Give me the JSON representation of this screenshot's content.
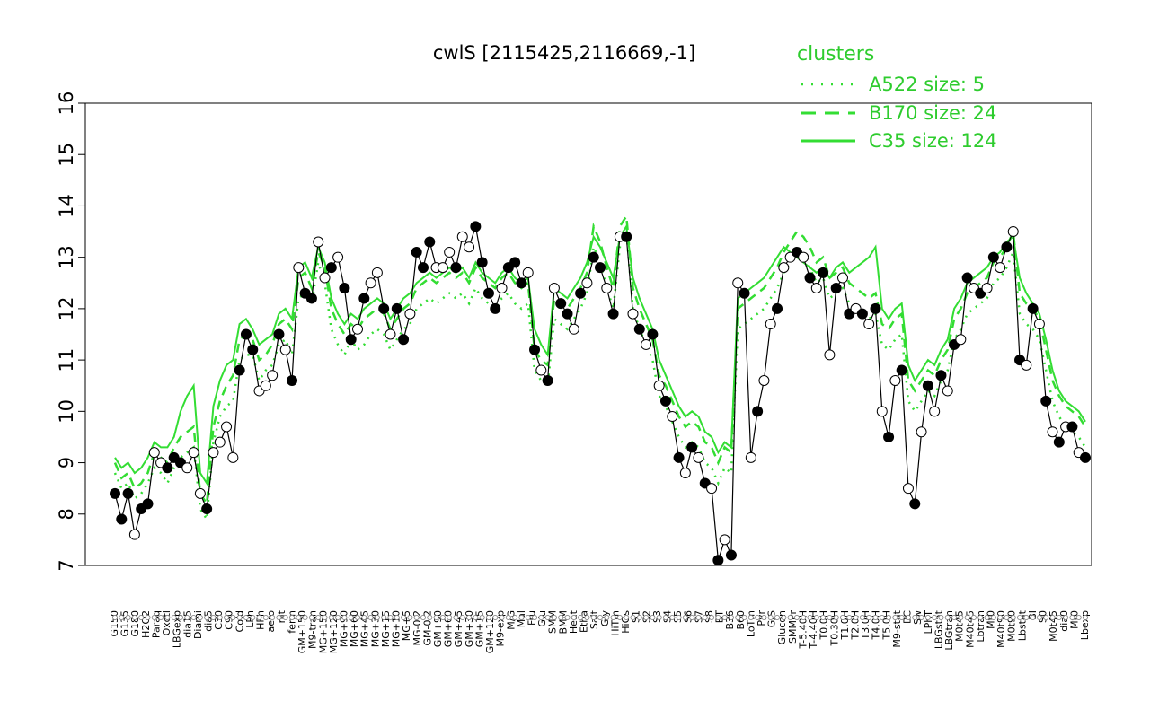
{
  "chart_data": {
    "type": "line",
    "title": "cwlS [2115425,2116669,-1]",
    "xlabel": "",
    "ylabel": "",
    "ylim": [
      7,
      16
    ],
    "yticks": [
      7,
      8,
      9,
      10,
      11,
      12,
      13,
      14,
      15,
      16
    ],
    "x_tick_labels": [
      "G150",
      "G135",
      "G180",
      "H2O2",
      "Paraq",
      "Oxctl",
      "LBGexp",
      "dia15",
      "Diami",
      "dia5",
      "C30",
      "C90",
      "Cold",
      "LPh",
      "HPh",
      "aero",
      "nit",
      "ferm",
      "GM+150",
      "M9-tran",
      "MG+150",
      "MG+120",
      "MG+90",
      "MG+60",
      "MG+45",
      "MG+30",
      "MG+15",
      "MG+10",
      "MG+5",
      "MG-0.2",
      "GM-0.2",
      "GM+90",
      "GM+60",
      "GM+45",
      "GM+30",
      "GM+15",
      "GM+120",
      "M9-exp",
      "M/G",
      "Mal",
      "Fru",
      "Glu",
      "SMM",
      "BMM",
      "Heat",
      "Etha",
      "Salt",
      "Gly",
      "HiTm",
      "HiOs",
      "S1",
      "S2",
      "S3",
      "S4",
      "S5",
      "S6",
      "S7",
      "S8",
      "BT",
      "B36",
      "B60",
      "LoTm",
      "Pyr",
      "G/S",
      "Glucon",
      "SMMPr",
      "T-5.40H",
      "T-4.40H",
      "T0.0H",
      "T0.30H",
      "T1.0H",
      "T2.0H",
      "T3.0H",
      "T4.0H",
      "T5.0H",
      "M9-stat",
      "BC",
      "Sw",
      "LPhT",
      "LBGstat",
      "LBGtran",
      "M0t45",
      "M40t45",
      "Lbtran",
      "Mt0",
      "M40t90",
      "M0t90",
      "Lbstat",
      "BI",
      "S0",
      "M0t45",
      "dia0",
      "Mt0",
      "Lbexp"
    ],
    "legend": {
      "title": "clusters",
      "position": "top-right",
      "entries": [
        {
          "label": "A522 size: 5",
          "style": "dotted"
        },
        {
          "label": "B170 size: 24",
          "style": "dashed"
        },
        {
          "label": "C35 size: 124",
          "style": "solid"
        }
      ]
    },
    "colors": {
      "cluster_lines": "#33dd33",
      "data_line": "#000000",
      "point_filled": "#000000",
      "point_open": "#ffffff"
    },
    "series": [
      {
        "name": "cwlS",
        "values": [
          8.4,
          7.9,
          8.4,
          7.6,
          8.1,
          8.2,
          9.2,
          9.0,
          8.9,
          9.1,
          9.0,
          8.9,
          9.2,
          8.4,
          8.1,
          9.2,
          9.4,
          9.7,
          9.1,
          10.8,
          11.5,
          11.2,
          10.4,
          10.5,
          10.7,
          11.5,
          11.2,
          10.6,
          12.8,
          12.3,
          12.2,
          13.3,
          12.6,
          12.8,
          13.0,
          12.4,
          11.4,
          11.6,
          12.2,
          12.5,
          12.7,
          12.0,
          11.5,
          12.0,
          11.4,
          11.9,
          13.1,
          12.8,
          13.3,
          12.8,
          12.8,
          13.1,
          12.8,
          13.4,
          13.2,
          13.6,
          12.9,
          12.3,
          12.0,
          12.4,
          12.8,
          12.9,
          12.5,
          12.7,
          11.2,
          10.8,
          10.6,
          12.4,
          12.1,
          11.9,
          11.6,
          12.3,
          12.5,
          13.0,
          12.8,
          12.4,
          11.9,
          13.4,
          13.4,
          11.9,
          11.6,
          11.3,
          11.5,
          10.5,
          10.2,
          9.9,
          9.1,
          8.8,
          9.3,
          9.1,
          8.6,
          8.5,
          7.1,
          7.5,
          7.2,
          12.5,
          12.3,
          9.1,
          10.0,
          10.6,
          11.7,
          12.0,
          12.8,
          13.0,
          13.1,
          13.0,
          12.6,
          12.4,
          12.7,
          11.1,
          12.4,
          12.6,
          11.9,
          12.0,
          11.9,
          11.7,
          12.0,
          10.0,
          9.5,
          10.6,
          10.8,
          8.5,
          8.2,
          9.6,
          10.5,
          10.0,
          10.7,
          10.4,
          11.3,
          11.4,
          12.6,
          12.4,
          12.3,
          12.4,
          13.0,
          12.8,
          13.2,
          13.5,
          11.0,
          10.9,
          12.0,
          11.7,
          10.2,
          9.6,
          9.4,
          9.7,
          9.7,
          9.2,
          9.1
        ],
        "filled_indices": [
          0,
          1,
          2,
          4,
          5,
          8,
          9,
          10,
          14,
          19,
          20,
          21,
          25,
          27,
          29,
          30,
          33,
          35,
          36,
          38,
          41,
          43,
          44,
          46,
          47,
          48,
          52,
          55,
          56,
          57,
          58,
          60,
          61,
          62,
          64,
          66,
          68,
          69,
          71,
          73,
          74,
          76,
          78,
          80,
          82,
          84,
          86,
          88,
          90,
          92,
          94,
          96,
          98,
          101,
          104,
          106,
          108,
          110,
          112,
          114,
          116,
          118,
          120,
          122,
          124,
          126,
          128,
          130,
          132,
          134,
          136,
          138,
          140,
          142,
          144,
          146,
          148
        ]
      },
      {
        "name": "A522 size: 5",
        "values": [
          8.8,
          8.5,
          8.6,
          8.3,
          8.4,
          8.6,
          8.9,
          8.8,
          8.6,
          8.9,
          9.1,
          9.2,
          9.3,
          8.1,
          7.9,
          9.4,
          9.9,
          10.1,
          10.2,
          11.0,
          11.1,
          11.1,
          10.6,
          10.8,
          10.9,
          11.3,
          11.4,
          11.1,
          12.2,
          12.3,
          12.1,
          12.9,
          12.5,
          11.6,
          11.3,
          11.1,
          11.4,
          11.2,
          11.3,
          11.5,
          11.6,
          11.5,
          11.2,
          11.4,
          11.6,
          11.7,
          12.0,
          12.1,
          12.2,
          12.1,
          12.2,
          12.3,
          12.2,
          12.3,
          12.1,
          12.4,
          12.2,
          12.1,
          12.0,
          12.2,
          12.3,
          12.1,
          12.0,
          12.1,
          10.8,
          10.6,
          10.5,
          11.8,
          11.7,
          11.6,
          11.8,
          12.0,
          12.3,
          13.2,
          12.9,
          12.4,
          12.0,
          13.2,
          13.5,
          12.0,
          11.6,
          11.3,
          11.0,
          10.3,
          10.1,
          9.8,
          9.5,
          9.3,
          9.4,
          9.3,
          9.0,
          8.9,
          8.6,
          8.9,
          8.8,
          11.6,
          11.7,
          11.8,
          11.9,
          12.0,
          12.2,
          12.4,
          12.7,
          12.9,
          13.1,
          13.0,
          12.8,
          12.5,
          12.6,
          12.2,
          12.3,
          12.4,
          12.1,
          12.0,
          11.9,
          11.8,
          11.9,
          11.3,
          11.2,
          11.4,
          11.5,
          10.2,
          10.0,
          10.2,
          10.4,
          10.3,
          10.6,
          10.8,
          11.4,
          11.6,
          11.9,
          12.0,
          12.1,
          12.2,
          12.5,
          12.6,
          12.8,
          13.1,
          11.9,
          11.7,
          11.6,
          11.4,
          10.8,
          10.2,
          9.9,
          9.7,
          9.6,
          9.5,
          9.3
        ]
      },
      {
        "name": "B170 size: 24",
        "values": [
          9.0,
          8.7,
          8.8,
          8.5,
          8.6,
          8.8,
          9.2,
          9.1,
          9.0,
          9.3,
          9.5,
          9.6,
          9.7,
          8.4,
          8.2,
          9.7,
          10.2,
          10.5,
          10.7,
          11.4,
          11.5,
          11.4,
          11.0,
          11.1,
          11.3,
          11.7,
          11.8,
          11.6,
          12.6,
          12.7,
          12.4,
          13.1,
          12.8,
          12.0,
          11.7,
          11.5,
          11.7,
          11.6,
          11.8,
          11.9,
          12.0,
          11.9,
          11.6,
          11.8,
          12.0,
          12.1,
          12.4,
          12.5,
          12.6,
          12.5,
          12.6,
          12.7,
          12.6,
          12.7,
          12.5,
          12.8,
          12.6,
          12.5,
          12.4,
          12.6,
          12.7,
          12.5,
          12.4,
          12.5,
          11.2,
          11.0,
          10.9,
          12.2,
          12.1,
          12.0,
          12.2,
          12.4,
          12.7,
          13.6,
          13.3,
          12.8,
          12.4,
          13.6,
          13.8,
          12.4,
          12.0,
          11.7,
          11.4,
          10.7,
          10.5,
          10.2,
          9.9,
          9.7,
          9.8,
          9.7,
          9.4,
          9.3,
          9.0,
          9.3,
          9.2,
          12.0,
          12.1,
          12.2,
          12.3,
          12.4,
          12.6,
          12.8,
          13.1,
          13.3,
          13.5,
          13.4,
          13.2,
          12.9,
          13.0,
          12.6,
          12.7,
          12.8,
          12.5,
          12.4,
          12.3,
          12.2,
          12.3,
          11.7,
          11.6,
          11.8,
          11.9,
          10.6,
          10.4,
          10.6,
          10.8,
          10.7,
          11.0,
          11.2,
          11.8,
          12.0,
          12.3,
          12.4,
          12.5,
          12.6,
          12.9,
          13.0,
          13.2,
          13.5,
          12.3,
          12.1,
          12.0,
          11.8,
          11.2,
          10.6,
          10.3,
          10.1,
          10.0,
          9.9,
          9.7
        ]
      },
      {
        "name": "C35 size: 124",
        "values": [
          9.1,
          8.9,
          9.0,
          8.8,
          8.9,
          9.1,
          9.4,
          9.3,
          9.3,
          9.5,
          10.0,
          10.3,
          10.5,
          8.8,
          8.6,
          10.1,
          10.6,
          10.9,
          11.0,
          11.7,
          11.8,
          11.6,
          11.3,
          11.4,
          11.5,
          11.9,
          12.0,
          11.8,
          12.8,
          12.9,
          12.6,
          13.2,
          12.9,
          12.2,
          11.9,
          11.7,
          11.9,
          11.8,
          12.0,
          12.1,
          12.2,
          12.1,
          11.8,
          12.0,
          12.2,
          12.3,
          12.5,
          12.6,
          12.7,
          12.6,
          12.7,
          12.8,
          12.7,
          12.8,
          12.6,
          12.9,
          12.7,
          12.6,
          12.5,
          12.7,
          12.8,
          12.6,
          12.5,
          12.6,
          11.6,
          11.3,
          11.1,
          12.4,
          12.3,
          12.2,
          12.4,
          12.6,
          12.9,
          13.4,
          13.2,
          12.9,
          12.6,
          13.4,
          13.6,
          12.6,
          12.2,
          11.9,
          11.6,
          11.0,
          10.7,
          10.4,
          10.1,
          9.9,
          10.0,
          9.9,
          9.6,
          9.5,
          9.2,
          9.4,
          9.3,
          12.2,
          12.3,
          12.4,
          12.5,
          12.6,
          12.8,
          13.0,
          13.2,
          13.1,
          13.0,
          12.9,
          12.8,
          12.7,
          12.8,
          12.6,
          12.8,
          12.9,
          12.7,
          12.8,
          12.9,
          13.0,
          13.2,
          12.0,
          11.8,
          12.0,
          12.1,
          10.9,
          10.6,
          10.8,
          11.0,
          10.9,
          11.2,
          11.4,
          12.0,
          12.2,
          12.5,
          12.6,
          12.7,
          12.8,
          13.0,
          13.1,
          13.3,
          13.4,
          12.6,
          12.3,
          12.1,
          11.9,
          11.4,
          10.8,
          10.4,
          10.2,
          10.1,
          10.0,
          9.8
        ]
      }
    ]
  }
}
